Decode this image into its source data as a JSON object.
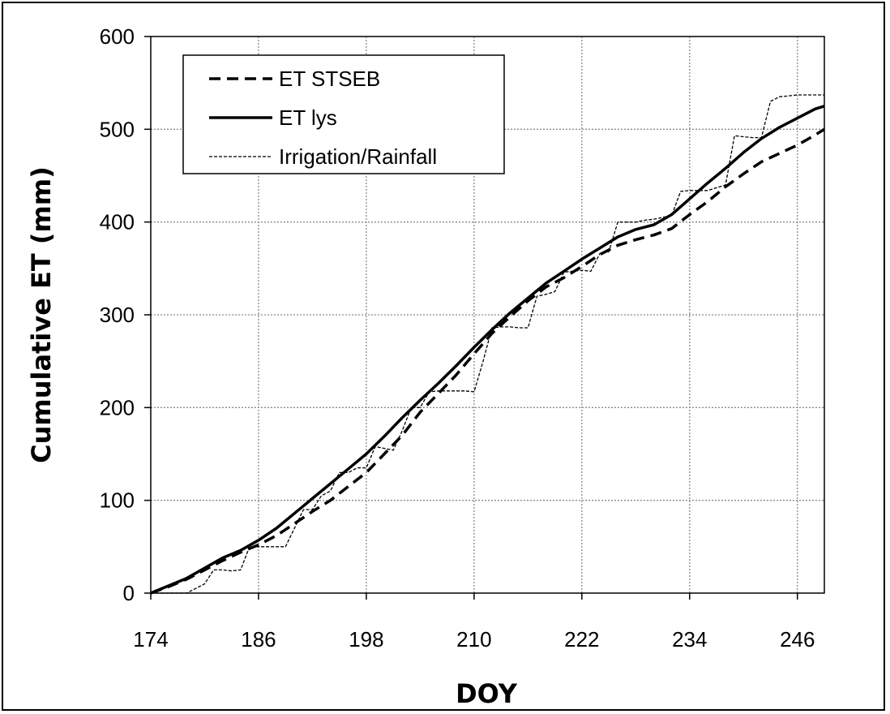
{
  "chart_data": {
    "type": "line",
    "xlabel": "DOY",
    "ylabel": "Cumulative ET (mm)",
    "xlim": [
      174,
      249
    ],
    "ylim": [
      0,
      600
    ],
    "xticks": [
      174,
      186,
      198,
      210,
      222,
      234,
      246
    ],
    "yticks": [
      0,
      100,
      200,
      300,
      400,
      500,
      600
    ],
    "grid": true,
    "legend_position": "top-left",
    "series": [
      {
        "name": "ET STSEB",
        "style": "dashed",
        "color": "#000000",
        "x": [
          174,
          176,
          178,
          180,
          182,
          184,
          186,
          188,
          190,
          192,
          194,
          196,
          198,
          200,
          202,
          204,
          206,
          208,
          210,
          212,
          214,
          216,
          218,
          220,
          222,
          224,
          226,
          228,
          230,
          232,
          234,
          236,
          238,
          240,
          242,
          244,
          246,
          248,
          249
        ],
        "y": [
          0,
          7,
          15,
          25,
          35,
          44,
          52,
          62,
          75,
          88,
          100,
          115,
          130,
          150,
          170,
          195,
          215,
          235,
          258,
          280,
          298,
          315,
          330,
          340,
          352,
          365,
          375,
          381,
          386,
          393,
          408,
          422,
          438,
          452,
          465,
          474,
          483,
          494,
          500
        ]
      },
      {
        "name": "ET lys",
        "style": "solid",
        "color": "#000000",
        "x": [
          174,
          176,
          178,
          180,
          182,
          184,
          186,
          188,
          190,
          192,
          194,
          196,
          198,
          200,
          202,
          204,
          206,
          208,
          210,
          212,
          214,
          216,
          218,
          220,
          222,
          224,
          226,
          228,
          230,
          232,
          234,
          236,
          238,
          240,
          242,
          244,
          246,
          248,
          249
        ],
        "y": [
          0,
          8,
          16,
          27,
          38,
          46,
          57,
          70,
          86,
          102,
          118,
          134,
          150,
          169,
          189,
          208,
          226,
          245,
          265,
          284,
          302,
          318,
          334,
          347,
          360,
          372,
          384,
          392,
          397,
          408,
          425,
          442,
          458,
          475,
          490,
          502,
          512,
          522,
          525
        ]
      },
      {
        "name": "Irrigation/Rainfall",
        "style": "dotted-thin",
        "color": "#000000",
        "x": [
          174,
          178,
          179,
          180,
          181,
          182,
          183,
          184,
          185,
          186,
          189,
          190,
          191,
          192,
          193,
          194,
          195,
          196,
          197,
          198,
          199,
          200,
          201,
          202,
          203,
          204,
          205,
          206,
          207,
          208,
          209,
          210,
          211,
          212,
          213,
          214,
          215,
          216,
          217,
          218,
          219,
          220,
          221,
          222,
          223,
          224,
          225,
          226,
          227,
          228,
          229,
          230,
          231,
          232,
          233,
          234,
          235,
          236,
          237,
          238,
          239,
          240,
          241,
          242,
          243,
          244,
          245,
          246,
          249
        ],
        "y": [
          0,
          0,
          5,
          10,
          25,
          25,
          24,
          25,
          50,
          50,
          50,
          70,
          90,
          90,
          105,
          110,
          130,
          130,
          135,
          135,
          158,
          156,
          154,
          175,
          200,
          200,
          217,
          218,
          218,
          218,
          218,
          217,
          250,
          286,
          287,
          287,
          286,
          286,
          320,
          322,
          325,
          346,
          347,
          348,
          347,
          366,
          368,
          400,
          400,
          400,
          402,
          403,
          405,
          407,
          433,
          434,
          434,
          434,
          437,
          440,
          493,
          492,
          491,
          491,
          530,
          535,
          536,
          537,
          537
        ]
      }
    ]
  }
}
